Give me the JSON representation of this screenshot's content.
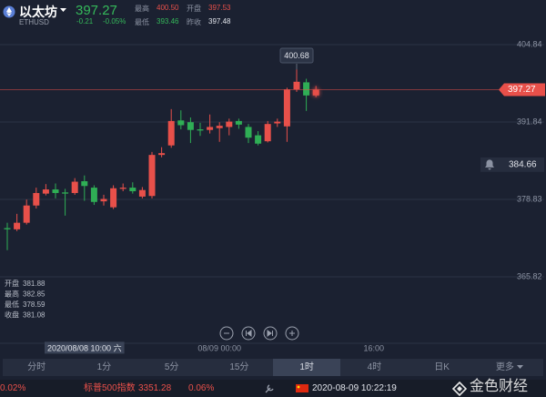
{
  "header": {
    "name": "以太坊",
    "code": "ETHUSD",
    "price": "397.27",
    "change": "-0.21",
    "change_pct": "-0.05%",
    "stats": [
      {
        "label": "最高",
        "value": "400.50"
      },
      {
        "label": "开盘",
        "value": "397.53"
      },
      {
        "label": "最低",
        "value": "393.46"
      },
      {
        "label": "昨收",
        "value": "397.48"
      }
    ]
  },
  "chart_data": {
    "type": "candlestick",
    "categories": [
      null,
      null,
      null,
      null,
      null,
      null,
      null,
      null,
      "2020/08/08 10:00 六",
      null,
      null,
      null,
      null,
      null,
      null,
      null,
      null,
      null,
      null,
      null,
      null,
      null,
      "08/09 00:00",
      null,
      null,
      null,
      null,
      null,
      null,
      null,
      null,
      null,
      null,
      null,
      null,
      null,
      null,
      null,
      "16:00"
    ],
    "open": [
      374.0,
      373.8,
      374.9,
      377.8,
      379.8,
      380.5,
      380.0,
      379.9,
      381.88,
      380.8,
      378.5,
      377.5,
      380.6,
      380.8,
      379.3,
      379.4,
      386.3,
      387.9,
      392.1,
      391.8,
      390.6,
      390.5,
      390.8,
      391.0,
      392.0,
      391.0,
      389.6,
      388.6,
      391.6,
      391.1,
      397.3,
      398.5,
      396.3,
      null,
      null,
      null,
      null,
      null,
      null
    ],
    "high": [
      374.9,
      376.4,
      378.8,
      380.8,
      381.4,
      381.5,
      380.6,
      382.4,
      382.85,
      381.2,
      379.6,
      381.2,
      381.5,
      381.7,
      380.9,
      386.8,
      387.6,
      394.0,
      393.8,
      392.6,
      391.7,
      393.1,
      391.8,
      392.4,
      392.4,
      391.5,
      390.3,
      392.0,
      392.4,
      397.6,
      400.68,
      399.1,
      397.9,
      null,
      null,
      null,
      null,
      null,
      null
    ],
    "low": [
      370.3,
      373.5,
      374.6,
      377.3,
      379.5,
      379.0,
      376.1,
      379.6,
      378.59,
      377.9,
      377.8,
      377.2,
      380.2,
      379.8,
      379.0,
      379.0,
      385.9,
      387.5,
      390.6,
      388.3,
      389.5,
      389.9,
      388.5,
      389.6,
      390.7,
      388.3,
      387.9,
      388.4,
      391.0,
      388.5,
      396.9,
      393.7,
      396.0,
      null,
      null,
      null,
      null,
      null,
      null
    ],
    "close": [
      373.8,
      374.9,
      377.8,
      379.9,
      380.5,
      379.9,
      379.8,
      381.8,
      381.08,
      378.4,
      378.9,
      380.7,
      380.8,
      380.2,
      380.4,
      386.3,
      386.6,
      392.0,
      391.3,
      390.5,
      390.4,
      391.0,
      391.2,
      391.9,
      391.4,
      389.2,
      388.2,
      391.5,
      391.9,
      397.3,
      398.6,
      396.3,
      397.27,
      null,
      null,
      null,
      null,
      null,
      null
    ],
    "up_color": "#e8504a",
    "down_color": "#2fae55",
    "ylim": [
      354.95,
      407.75
    ],
    "yticks": [
      404.84,
      391.84,
      378.83,
      365.82
    ],
    "grid": true,
    "crosshair": 8,
    "alert_price": 384.66,
    "info_labels": [
      "开盘",
      "最高",
      "最低",
      "收盘"
    ]
  },
  "tabs": {
    "items": [
      "分时",
      "1分",
      "5分",
      "15分",
      "1时",
      "4时",
      "日K",
      "更多"
    ],
    "active": 4
  },
  "ticker": {
    "pct_left": "0.02%",
    "index_name": "标普500指数",
    "index_value": "3351.28",
    "index_pct": "0.06%",
    "time": "2020-08-09 10:22:19",
    "brand": "金色财经"
  }
}
